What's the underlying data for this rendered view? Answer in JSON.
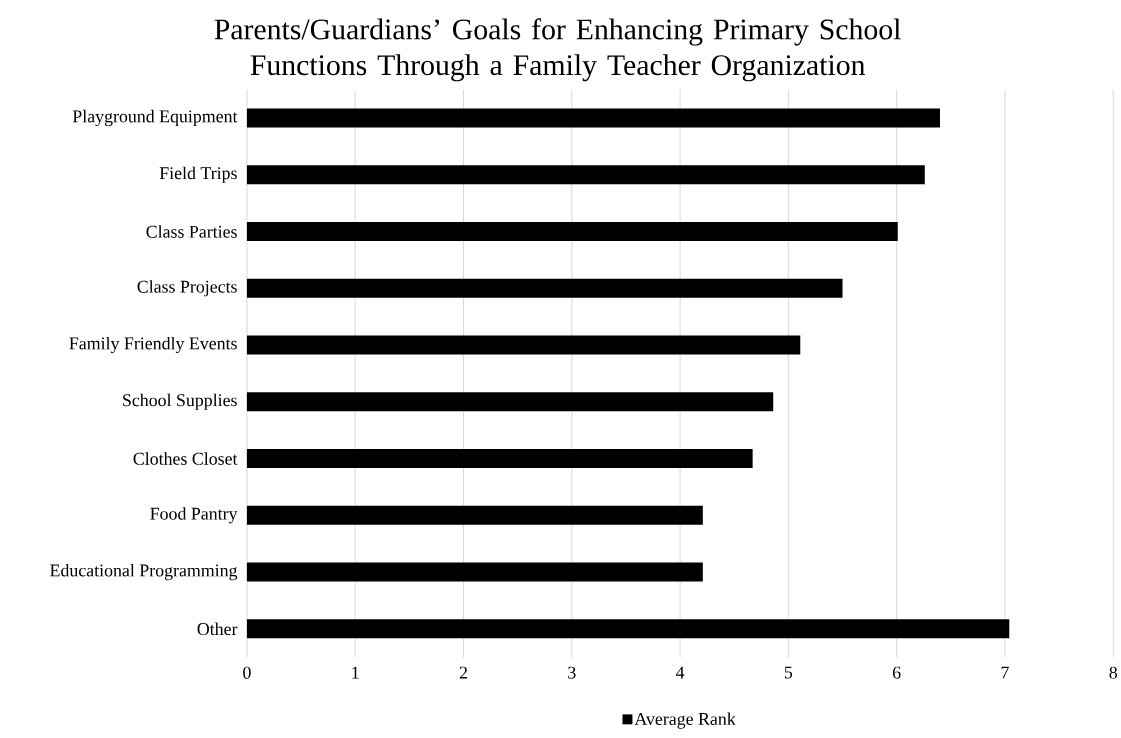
{
  "chart_data": {
    "type": "bar",
    "orientation": "horizontal",
    "title": "Parents/Guardians’ Goals for Enhancing Primary School Functions Through a Family Teacher Organization",
    "categories": [
      "Playground Equipment",
      "Field Trips",
      "Class Parties",
      "Class Projects",
      "Family Friendly Events",
      "School Supplies",
      "Clothes Closet",
      "Food Pantry",
      "Educational Programming",
      "Other"
    ],
    "series": [
      {
        "name": "Average Rank",
        "color": "#000000",
        "values": [
          6.4,
          6.26,
          6.01,
          5.5,
          5.11,
          4.86,
          4.67,
          4.21,
          4.21,
          7.04
        ]
      }
    ],
    "xlim": [
      0,
      8
    ],
    "xticks": [
      0,
      1,
      2,
      3,
      4,
      5,
      6,
      7,
      8
    ],
    "grid": "x",
    "legend": "bottom"
  }
}
